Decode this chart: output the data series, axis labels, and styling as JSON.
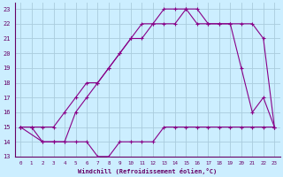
{
  "xlabel": "Windchill (Refroidissement éolien,°C)",
  "bg_color": "#cceeff",
  "grid_color": "#aaccdd",
  "line_color": "#880088",
  "xlim": [
    -0.5,
    23.5
  ],
  "ylim": [
    13,
    23.4
  ],
  "xticks": [
    0,
    1,
    2,
    3,
    4,
    5,
    6,
    7,
    8,
    9,
    10,
    11,
    12,
    13,
    14,
    15,
    16,
    17,
    18,
    19,
    20,
    21,
    22,
    23
  ],
  "yticks": [
    13,
    14,
    15,
    16,
    17,
    18,
    19,
    20,
    21,
    22,
    23
  ],
  "line1_x": [
    0,
    1,
    2,
    3,
    4,
    5,
    6,
    7,
    8,
    9,
    10,
    11,
    12,
    13,
    14,
    15,
    16,
    17,
    18,
    19,
    20,
    21,
    22,
    23
  ],
  "line1_y": [
    15,
    15,
    14,
    14,
    14,
    14,
    14,
    13,
    13,
    14,
    14,
    14,
    14,
    15,
    15,
    15,
    15,
    15,
    15,
    15,
    15,
    15,
    15,
    15
  ],
  "line2_x": [
    0,
    2,
    3,
    4,
    5,
    6,
    7,
    8,
    9,
    10,
    11,
    12,
    13,
    14,
    15,
    16,
    17,
    18,
    19,
    20,
    21,
    22,
    23
  ],
  "line2_y": [
    15,
    14,
    14,
    14,
    16,
    17,
    18,
    19,
    20,
    21,
    21,
    22,
    22,
    22,
    23,
    22,
    22,
    22,
    22,
    19,
    16,
    17,
    15
  ],
  "line3_x": [
    0,
    1,
    2,
    3,
    4,
    5,
    6,
    7,
    8,
    9,
    10,
    11,
    12,
    13,
    14,
    15,
    16,
    17,
    18,
    19,
    20,
    21,
    22,
    23
  ],
  "line3_y": [
    15,
    15,
    15,
    15,
    16,
    17,
    18,
    18,
    19,
    20,
    21,
    22,
    22,
    23,
    23,
    23,
    23,
    22,
    22,
    22,
    22,
    22,
    21,
    15
  ]
}
